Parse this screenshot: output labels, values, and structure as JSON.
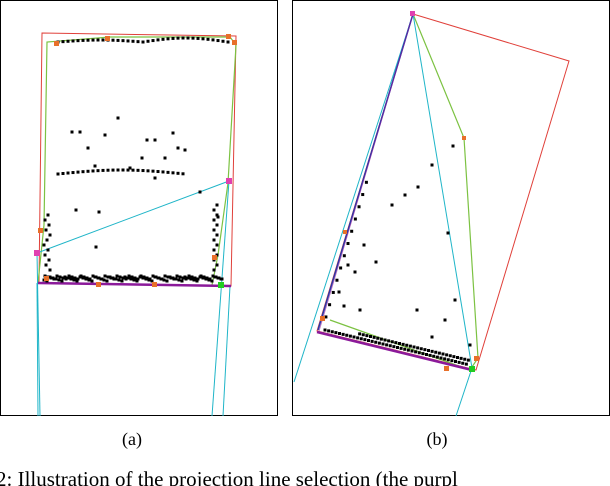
{
  "panels": [
    {
      "label": "(a)"
    },
    {
      "label": "(b)"
    }
  ],
  "caption": "2: Illustration of the projection line selection (the purpl",
  "colors": {
    "points": "#000000",
    "outer_box": "#e0403a",
    "hull": "#7cc242",
    "cyan_lines": "#1fb5c8",
    "projection_line": "#8b1a9a",
    "blue_line": "#2a3aa8",
    "orange_marker": "#e8702a",
    "magenta_marker": "#e040b0",
    "green_marker": "#22cc22",
    "frame": "#000000"
  }
}
